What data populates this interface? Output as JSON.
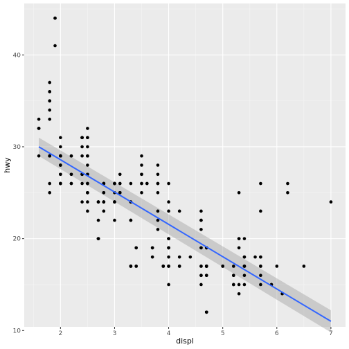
{
  "chart_data": {
    "type": "scatter",
    "title": "",
    "xlabel": "displ",
    "ylabel": "hwy",
    "xlim": [
      1.33,
      7.27
    ],
    "ylim": [
      10.4,
      45.6
    ],
    "x_ticks": [
      2,
      3,
      4,
      5,
      6,
      7
    ],
    "y_ticks": [
      10,
      20,
      30,
      40
    ],
    "grid": true,
    "legend": "none",
    "colors": {
      "panel_background": "#ebebeb",
      "grid_major": "#ffffff",
      "grid_minor": "#f5f5f5",
      "point": "#000000",
      "trend_line": "#3366ff",
      "confidence_band": "#999999"
    },
    "points": [
      [
        1.8,
        29
      ],
      [
        1.8,
        29
      ],
      [
        2.0,
        31
      ],
      [
        2.0,
        30
      ],
      [
        2.8,
        26
      ],
      [
        2.8,
        26
      ],
      [
        3.1,
        27
      ],
      [
        1.8,
        26
      ],
      [
        1.8,
        25
      ],
      [
        2.0,
        28
      ],
      [
        2.0,
        27
      ],
      [
        2.8,
        25
      ],
      [
        2.8,
        25
      ],
      [
        3.1,
        25
      ],
      [
        3.1,
        25
      ],
      [
        2.8,
        24
      ],
      [
        3.1,
        25
      ],
      [
        4.2,
        23
      ],
      [
        5.3,
        20
      ],
      [
        5.3,
        15
      ],
      [
        5.3,
        20
      ],
      [
        5.7,
        17
      ],
      [
        6.0,
        17
      ],
      [
        5.7,
        26
      ],
      [
        5.7,
        23
      ],
      [
        6.2,
        26
      ],
      [
        6.2,
        25
      ],
      [
        7.0,
        24
      ],
      [
        5.3,
        19
      ],
      [
        5.3,
        14
      ],
      [
        5.7,
        15
      ],
      [
        6.5,
        17
      ],
      [
        2.4,
        27
      ],
      [
        2.4,
        30
      ],
      [
        3.1,
        26
      ],
      [
        3.5,
        29
      ],
      [
        3.6,
        26
      ],
      [
        2.4,
        24
      ],
      [
        3.0,
        24
      ],
      [
        3.3,
        22
      ],
      [
        3.3,
        22
      ],
      [
        3.3,
        24
      ],
      [
        3.3,
        24
      ],
      [
        3.3,
        17
      ],
      [
        3.8,
        22
      ],
      [
        3.8,
        21
      ],
      [
        3.8,
        23
      ],
      [
        4.0,
        23
      ],
      [
        3.7,
        19
      ],
      [
        3.7,
        18
      ],
      [
        3.9,
        17
      ],
      [
        3.9,
        17
      ],
      [
        4.7,
        19
      ],
      [
        4.7,
        19
      ],
      [
        4.7,
        12
      ],
      [
        5.2,
        17
      ],
      [
        5.2,
        15
      ],
      [
        3.9,
        17
      ],
      [
        4.7,
        17
      ],
      [
        4.7,
        12
      ],
      [
        4.7,
        17
      ],
      [
        5.2,
        16
      ],
      [
        5.7,
        18
      ],
      [
        5.9,
        15
      ],
      [
        4.7,
        16
      ],
      [
        4.7,
        12
      ],
      [
        4.7,
        17
      ],
      [
        4.7,
        17
      ],
      [
        4.7,
        16
      ],
      [
        4.7,
        12
      ],
      [
        5.2,
        15
      ],
      [
        5.2,
        16
      ],
      [
        5.7,
        17
      ],
      [
        5.9,
        15
      ],
      [
        4.6,
        17
      ],
      [
        5.4,
        17
      ],
      [
        5.4,
        18
      ],
      [
        4.0,
        17
      ],
      [
        4.0,
        19
      ],
      [
        4.0,
        17
      ],
      [
        4.0,
        19
      ],
      [
        4.6,
        19
      ],
      [
        5.0,
        17
      ],
      [
        4.2,
        17
      ],
      [
        4.2,
        17
      ],
      [
        4.6,
        16
      ],
      [
        4.6,
        16
      ],
      [
        4.6,
        17
      ],
      [
        5.4,
        15
      ],
      [
        5.4,
        17
      ],
      [
        3.8,
        26
      ],
      [
        3.8,
        25
      ],
      [
        4.0,
        26
      ],
      [
        4.0,
        24
      ],
      [
        4.6,
        21
      ],
      [
        4.6,
        22
      ],
      [
        4.6,
        23
      ],
      [
        4.6,
        22
      ],
      [
        5.4,
        20
      ],
      [
        1.6,
        33
      ],
      [
        1.6,
        32
      ],
      [
        1.6,
        32
      ],
      [
        1.6,
        29
      ],
      [
        1.6,
        32
      ],
      [
        1.8,
        34
      ],
      [
        1.8,
        36
      ],
      [
        1.8,
        36
      ],
      [
        2.0,
        29
      ],
      [
        2.4,
        26
      ],
      [
        2.4,
        27
      ],
      [
        2.5,
        30
      ],
      [
        2.5,
        31
      ],
      [
        3.3,
        26
      ],
      [
        2.0,
        26
      ],
      [
        2.0,
        29
      ],
      [
        2.0,
        28
      ],
      [
        2.0,
        27
      ],
      [
        2.7,
        24
      ],
      [
        2.7,
        24
      ],
      [
        2.7,
        24
      ],
      [
        3.0,
        22
      ],
      [
        3.7,
        19
      ],
      [
        4.0,
        20
      ],
      [
        4.7,
        17
      ],
      [
        4.7,
        12
      ],
      [
        4.7,
        19
      ],
      [
        5.7,
        18
      ],
      [
        6.1,
        14
      ],
      [
        4.0,
        15
      ],
      [
        4.2,
        18
      ],
      [
        4.4,
        18
      ],
      [
        4.6,
        15
      ],
      [
        5.4,
        17
      ],
      [
        5.4,
        16
      ],
      [
        5.4,
        18
      ],
      [
        4.0,
        17
      ],
      [
        4.0,
        19
      ],
      [
        4.6,
        19
      ],
      [
        5.0,
        17
      ],
      [
        2.4,
        29
      ],
      [
        2.4,
        27
      ],
      [
        2.5,
        31
      ],
      [
        2.5,
        32
      ],
      [
        3.5,
        27
      ],
      [
        3.5,
        26
      ],
      [
        3.0,
        26
      ],
      [
        3.0,
        25
      ],
      [
        3.5,
        25
      ],
      [
        3.3,
        17
      ],
      [
        3.3,
        17
      ],
      [
        4.0,
        20
      ],
      [
        5.6,
        18
      ],
      [
        3.1,
        26
      ],
      [
        3.8,
        26
      ],
      [
        3.8,
        27
      ],
      [
        3.8,
        28
      ],
      [
        5.3,
        25
      ],
      [
        2.5,
        25
      ],
      [
        2.5,
        24
      ],
      [
        2.5,
        27
      ],
      [
        2.5,
        25
      ],
      [
        2.5,
        26
      ],
      [
        2.5,
        23
      ],
      [
        2.2,
        26
      ],
      [
        2.2,
        26
      ],
      [
        2.5,
        26
      ],
      [
        2.5,
        26
      ],
      [
        2.5,
        25
      ],
      [
        2.5,
        27
      ],
      [
        2.5,
        25
      ],
      [
        2.5,
        27
      ],
      [
        2.7,
        20
      ],
      [
        2.7,
        20
      ],
      [
        3.4,
        19
      ],
      [
        3.4,
        17
      ],
      [
        4.0,
        20
      ],
      [
        4.7,
        17
      ],
      [
        2.2,
        29
      ],
      [
        2.2,
        27
      ],
      [
        2.4,
        31
      ],
      [
        2.4,
        31
      ],
      [
        3.0,
        26
      ],
      [
        3.0,
        26
      ],
      [
        3.5,
        28
      ],
      [
        2.2,
        27
      ],
      [
        2.2,
        29
      ],
      [
        2.4,
        31
      ],
      [
        2.4,
        31
      ],
      [
        3.0,
        26
      ],
      [
        3.0,
        26
      ],
      [
        3.5,
        27
      ],
      [
        3.0,
        24
      ],
      [
        3.0,
        24
      ],
      [
        3.5,
        26
      ],
      [
        1.8,
        33
      ],
      [
        1.8,
        35
      ],
      [
        1.8,
        37
      ],
      [
        1.8,
        35
      ],
      [
        1.8,
        29
      ],
      [
        4.7,
        17
      ],
      [
        5.7,
        16
      ],
      [
        2.7,
        20
      ],
      [
        2.7,
        20
      ],
      [
        2.7,
        22
      ],
      [
        3.4,
        17
      ],
      [
        3.4,
        19
      ],
      [
        4.0,
        18
      ],
      [
        4.0,
        20
      ],
      [
        2.0,
        29
      ],
      [
        2.0,
        26
      ],
      [
        2.0,
        29
      ],
      [
        2.0,
        29
      ],
      [
        2.8,
        24
      ],
      [
        1.9,
        44
      ],
      [
        2.0,
        29
      ],
      [
        2.0,
        26
      ],
      [
        2.0,
        29
      ],
      [
        2.0,
        29
      ],
      [
        2.5,
        29
      ],
      [
        2.5,
        29
      ],
      [
        2.8,
        23
      ],
      [
        2.8,
        24
      ],
      [
        1.9,
        44
      ],
      [
        1.9,
        41
      ],
      [
        2.0,
        29
      ],
      [
        2.0,
        26
      ],
      [
        2.5,
        28
      ],
      [
        2.5,
        29
      ],
      [
        1.8,
        29
      ],
      [
        1.8,
        29
      ],
      [
        2.0,
        28
      ],
      [
        2.0,
        29
      ],
      [
        2.8,
        26
      ],
      [
        2.8,
        26
      ],
      [
        3.6,
        26
      ]
    ],
    "trend": {
      "method": "lm",
      "x": [
        1.6,
        7.0
      ],
      "y": [
        30.0,
        11.0
      ],
      "band_upper": [
        31.0,
        12.2
      ],
      "band_lower": [
        29.0,
        9.8
      ]
    }
  }
}
